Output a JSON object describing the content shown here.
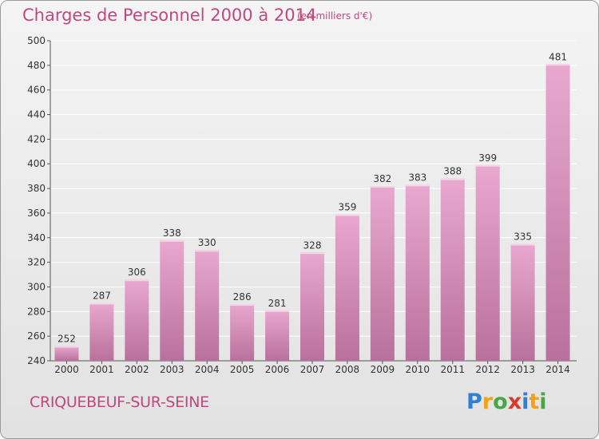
{
  "header": {
    "title": "Charges de Personnel 2000 à 2014",
    "subtitle": "(en milliers d'€)"
  },
  "footer": {
    "city": "CRIQUEBEUF-SUR-SEINE",
    "logo_letters": [
      "P",
      "r",
      "o",
      "x",
      "i",
      "t",
      "i"
    ],
    "logo_colors": [
      "#2f7fd2",
      "#f0a21a",
      "#45a845",
      "#d93a2a",
      "#2f7fd2",
      "#f0a21a",
      "#45a845"
    ]
  },
  "colors": {
    "bar_top": "#e9a8cf",
    "bar_bottom": "#b8719c",
    "text_accent": "#c0487f",
    "grid": "#ffffff"
  },
  "chart_data": {
    "type": "bar",
    "title": "Charges de Personnel 2000 à 2014",
    "subtitle": "(en milliers d'€)",
    "xlabel": "",
    "ylabel": "",
    "categories": [
      "2000",
      "2001",
      "2002",
      "2003",
      "2004",
      "2005",
      "2006",
      "2007",
      "2008",
      "2009",
      "2010",
      "2011",
      "2012",
      "2013",
      "2014"
    ],
    "values": [
      252,
      287,
      306,
      338,
      330,
      286,
      281,
      328,
      359,
      382,
      383,
      388,
      399,
      335,
      481
    ],
    "ylim": [
      240,
      500
    ],
    "yticks": [
      240,
      260,
      280,
      300,
      320,
      340,
      360,
      380,
      400,
      420,
      440,
      460,
      480,
      500
    ],
    "grid": true
  }
}
